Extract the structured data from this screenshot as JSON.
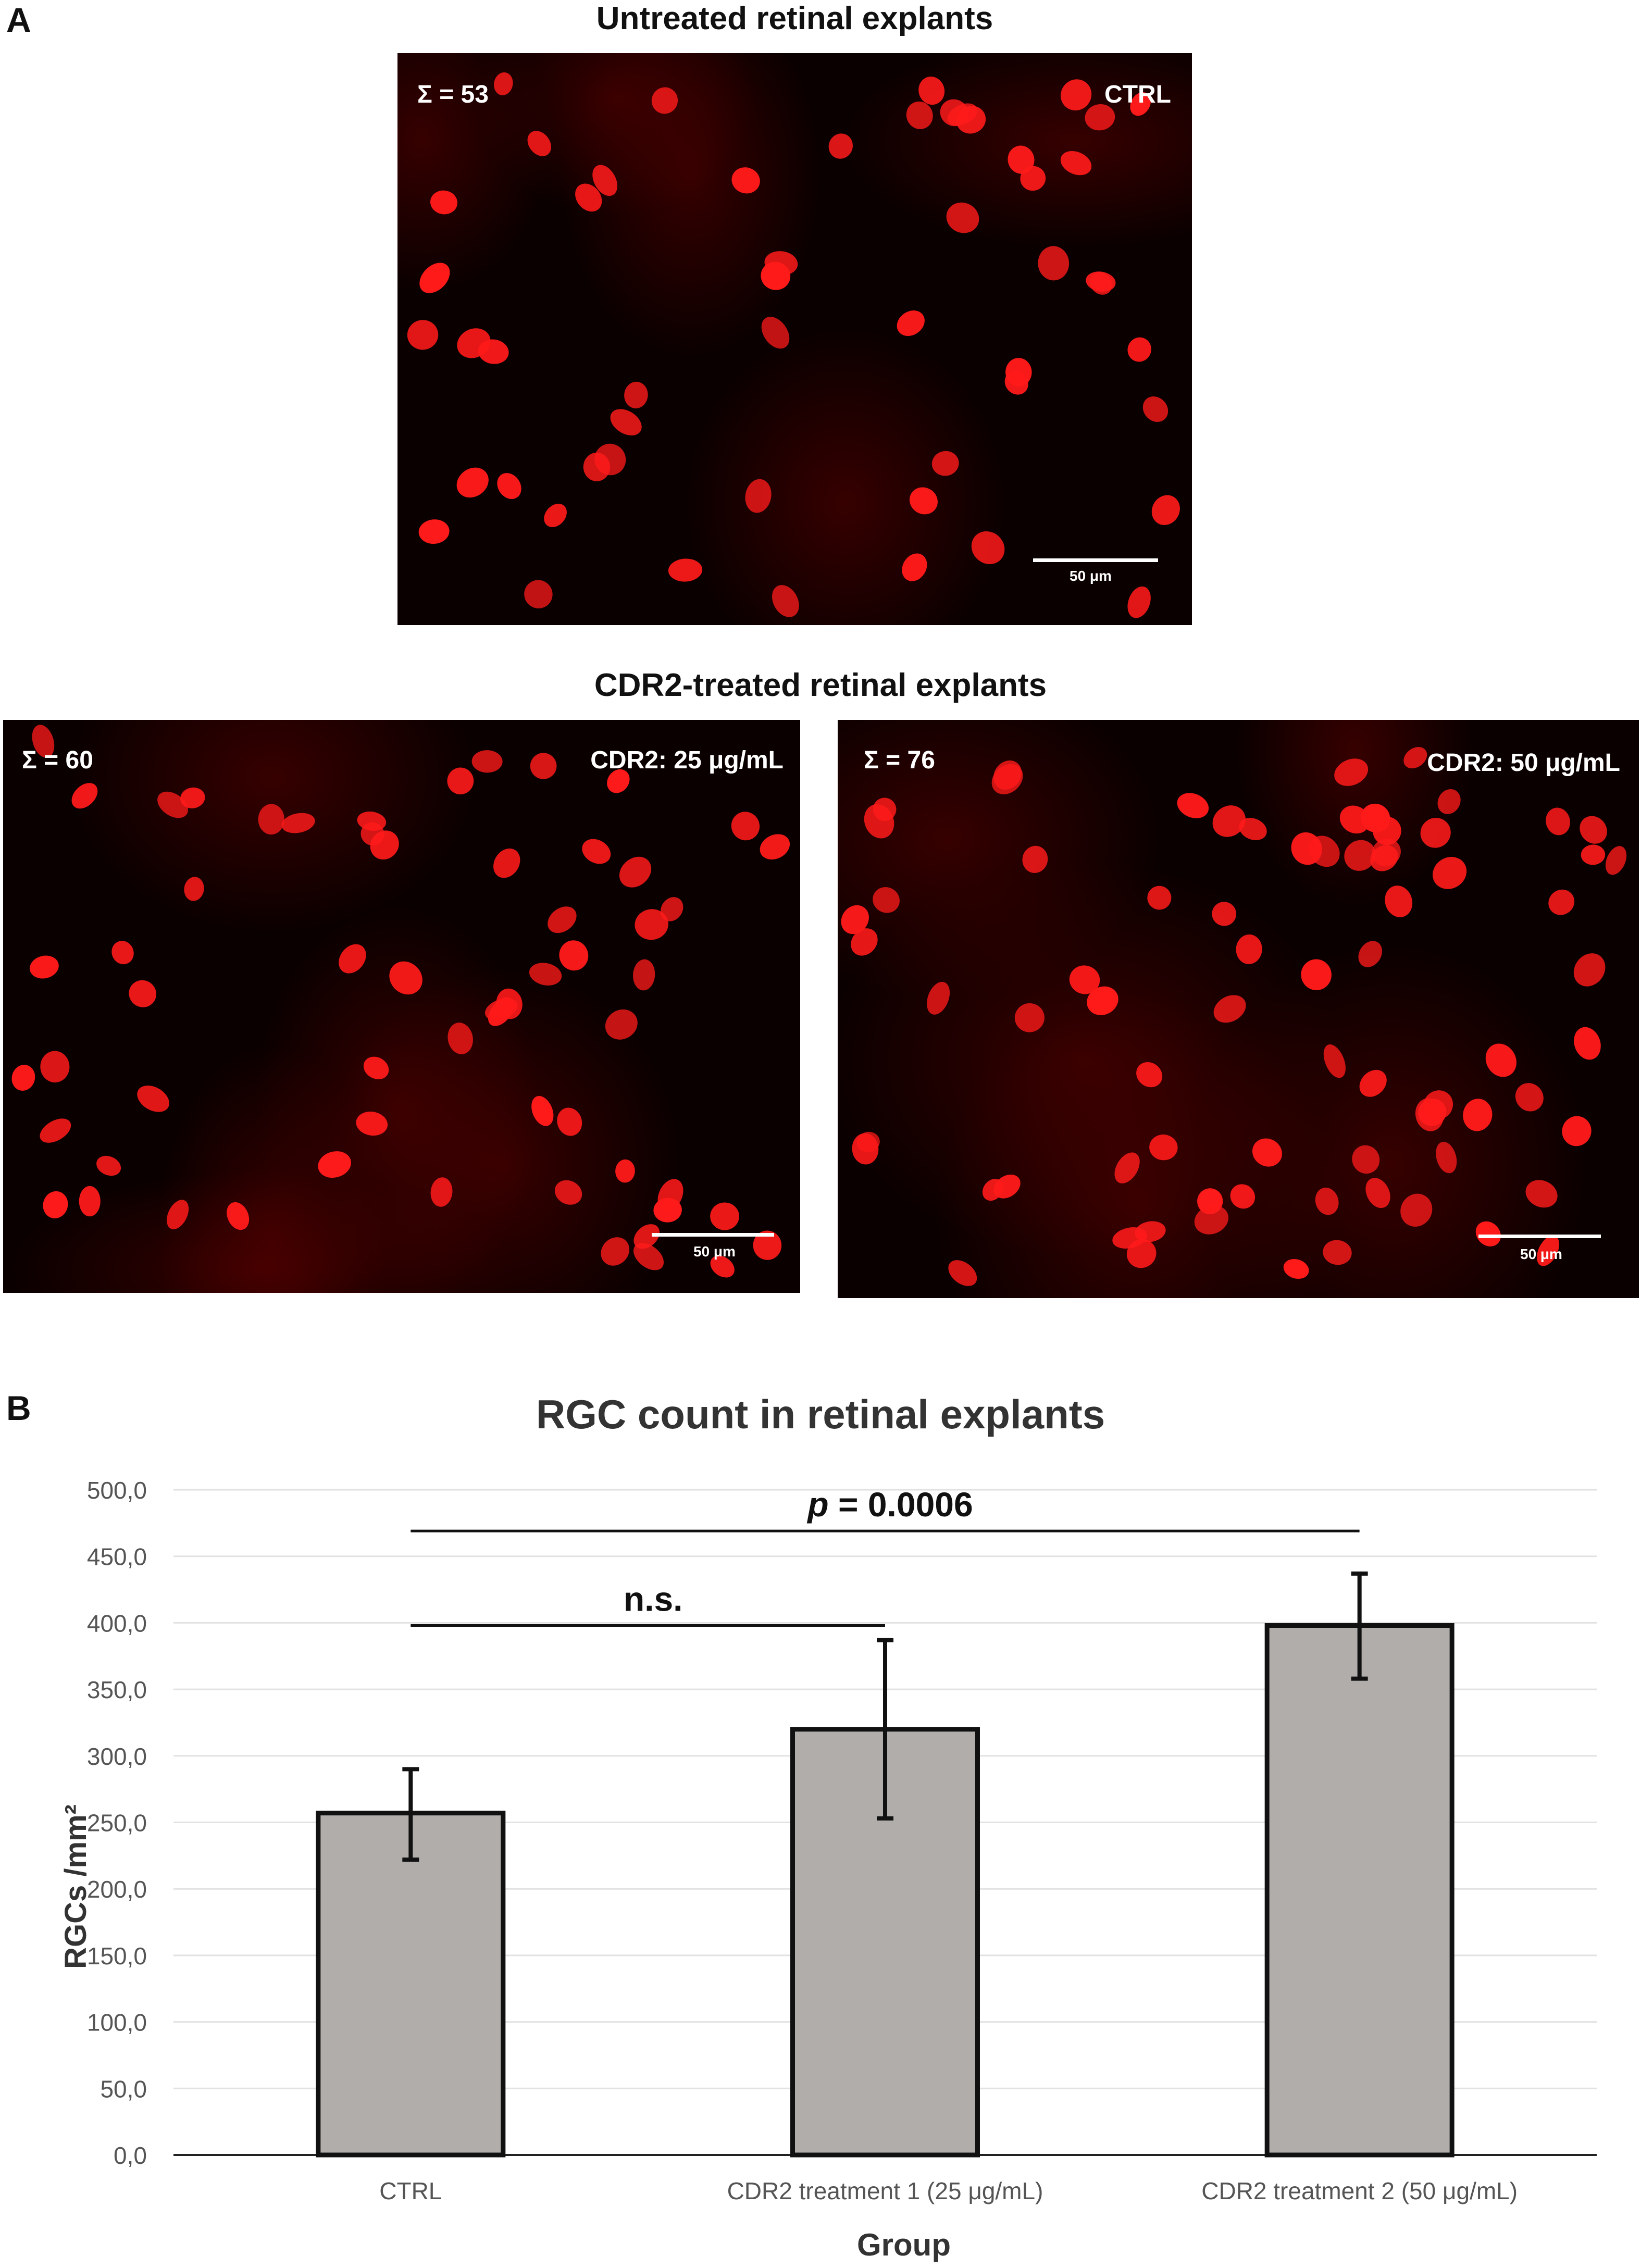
{
  "panel_a": {
    "letter": "A",
    "untreated_title": "Untreated retinal explants",
    "treated_title": "CDR2-treated retinal explants",
    "images": [
      {
        "id": "ctrl",
        "count_label": "Σ = 53",
        "condition_label": "CTRL",
        "scale_label": "50 μm",
        "nuclei_count": 53
      },
      {
        "id": "cdr2-25",
        "count_label": "Σ = 60",
        "condition_label": "CDR2: 25 μg/mL",
        "scale_label": "50 μm",
        "nuclei_count": 60
      },
      {
        "id": "cdr2-50",
        "count_label": "Σ = 76",
        "condition_label": "CDR2: 50 μg/mL",
        "scale_label": "50 μm",
        "nuclei_count": 76
      }
    ],
    "colors": {
      "background": "#0b0000",
      "nucleus": "#ff1a1a",
      "haze": "#5a0000"
    }
  },
  "panel_b": {
    "letter": "B"
  },
  "chart_data": {
    "type": "bar",
    "title": "RGC count in retinal explants",
    "xlabel": "Group",
    "ylabel": "RGCs /mm²",
    "categories": [
      "CTRL",
      "CDR2 treatment 1  (25 μg/mL)",
      "CDR2 treatment 2  (50 μg/mL)"
    ],
    "values": [
      257,
      320,
      398
    ],
    "error_low": [
      222,
      253,
      358
    ],
    "error_high": [
      290,
      387,
      437
    ],
    "ylim": [
      0,
      500
    ],
    "yticks": [
      "0,0",
      "50,0",
      "100,0",
      "150,0",
      "200,0",
      "250,0",
      "300,0",
      "350,0",
      "400,0",
      "450,0",
      "500,0"
    ],
    "grid": true,
    "bar_color": "#b0adab",
    "bar_edge_color": "#111111",
    "annotations": [
      {
        "from": 0,
        "to": 1,
        "label": "n.s.",
        "italic_prefix": "",
        "level": 398
      },
      {
        "from": 0,
        "to": 2,
        "label": " = 0.0006",
        "italic_prefix": "p",
        "level": 469
      }
    ]
  }
}
